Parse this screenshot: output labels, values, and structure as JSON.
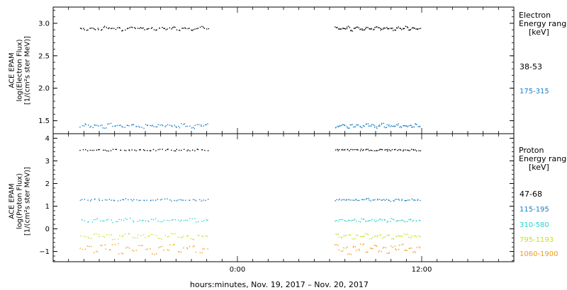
{
  "chart_data": [
    {
      "type": "scatter",
      "title": "",
      "ylabel": [
        "ACE EPAM",
        "log(Electron Flux)",
        "[1/(cm²s ster MeV)]"
      ],
      "ylim": [
        1.3,
        3.25
      ],
      "yticks": [
        1.5,
        2.0,
        2.5,
        3.0
      ],
      "yticklabels": [
        "1.5",
        "2.0",
        "2.5",
        "3.0"
      ],
      "legend_title": [
        "Electron",
        "Energy range",
        "[keV]"
      ],
      "legend_placement": "right",
      "x_segments_utc": [
        [
          "2017-11-19 13:42",
          "2017-11-19 22:06"
        ],
        [
          "2017-11-20 06:18",
          "2017-11-20 11:54"
        ]
      ],
      "series": [
        {
          "name": "38-53",
          "color": "#000000",
          "values": [
            2.93,
            2.9,
            2.94,
            2.92,
            2.91,
            2.95,
            2.93,
            2.92,
            2.94,
            2.9,
            2.93,
            2.95,
            2.92,
            2.94,
            2.91,
            2.93,
            2.9,
            2.94,
            2.92,
            2.93,
            2.95,
            2.91,
            2.94,
            2.92,
            2.9,
            2.93,
            2.95,
            2.92,
            2.94,
            2.91,
            2.93,
            2.92,
            2.95,
            2.9,
            2.93,
            2.94,
            2.92,
            2.91,
            2.94,
            2.93,
            2.92,
            2.95,
            2.93,
            2.91,
            2.94,
            2.92,
            2.93,
            2.9,
            2.94,
            2.92,
            2.93,
            2.95,
            2.91,
            2.94,
            2.93,
            2.92
          ]
        },
        {
          "name": "175-315",
          "color": "#1a7fc4",
          "values": [
            1.42,
            1.45,
            1.41,
            1.44,
            1.43,
            1.4,
            1.46,
            1.42,
            1.44,
            1.41,
            1.43,
            1.45,
            1.42,
            1.4,
            1.44,
            1.43,
            1.41,
            1.45,
            1.42,
            1.44,
            1.43,
            1.41,
            1.46,
            1.42,
            1.4,
            1.44,
            1.43,
            1.45,
            1.41,
            1.42,
            1.44,
            1.43,
            1.4,
            1.45,
            1.42,
            1.44,
            1.41,
            1.43,
            1.45,
            1.42,
            1.44,
            1.4,
            1.43,
            1.46,
            1.41,
            1.44,
            1.42,
            1.43,
            1.45,
            1.41,
            1.44,
            1.42,
            1.43,
            1.4,
            1.45,
            1.42
          ]
        }
      ]
    },
    {
      "type": "scatter",
      "title": "",
      "ylabel": [
        "ACE EPAM",
        "log(Proton Flux)",
        "[1/(cm²s ster MeV)]"
      ],
      "ylim": [
        -1.45,
        4.2
      ],
      "yticks": [
        -1,
        0,
        1,
        2,
        3,
        4
      ],
      "yticklabels": [
        "−1",
        "0",
        "1",
        "2",
        "3",
        "4"
      ],
      "legend_title": [
        "Proton",
        "Energy range",
        "[keV]"
      ],
      "legend_placement": "right",
      "xlabel": "hours:minutes, Nov. 19, 2017 – Nov. 20, 2017",
      "xlim": [
        "2017-11-19 12:00",
        "2017-11-20 18:00"
      ],
      "xticks": [
        "2017-11-20 00:00",
        "2017-11-20 12:00"
      ],
      "xticklabels": [
        "0:00",
        "12:00"
      ],
      "x_segments_utc": [
        [
          "2017-11-19 13:42",
          "2017-11-19 22:06"
        ],
        [
          "2017-11-20 06:18",
          "2017-11-20 11:54"
        ]
      ],
      "series": [
        {
          "name": "47-68",
          "color": "#000000",
          "values": [
            3.5,
            3.49,
            3.51,
            3.5,
            3.48,
            3.5,
            3.52,
            3.49,
            3.5,
            3.51,
            3.5,
            3.49,
            3.5,
            3.51,
            3.48,
            3.5,
            3.5,
            3.49,
            3.51,
            3.5,
            3.5,
            3.49,
            3.52,
            3.5,
            3.49,
            3.5,
            3.51,
            3.5,
            3.49,
            3.5,
            3.5,
            3.51,
            3.49,
            3.5,
            3.5,
            3.48,
            3.5,
            3.51,
            3.5,
            3.49
          ]
        },
        {
          "name": "115-195",
          "color": "#1a7fc4",
          "values": [
            1.3,
            1.28,
            1.32,
            1.29,
            1.31,
            1.27,
            1.3,
            1.33,
            1.29,
            1.3,
            1.28,
            1.31,
            1.3,
            1.32,
            1.27,
            1.29,
            1.31,
            1.3,
            1.28,
            1.3,
            1.29,
            1.32,
            1.3,
            1.28,
            1.31,
            1.29,
            1.3,
            1.33,
            1.28,
            1.3,
            1.31,
            1.29,
            1.3,
            1.27,
            1.32,
            1.3,
            1.29,
            1.31,
            1.28,
            1.3
          ]
        },
        {
          "name": "310-580",
          "color": "#2ad0c8",
          "values": [
            0.4,
            0.35,
            0.45,
            0.38,
            0.42,
            0.33,
            0.4,
            0.47,
            0.36,
            0.41,
            0.38,
            0.44,
            0.35,
            0.4,
            0.43,
            0.37,
            0.4,
            0.46,
            0.34,
            0.41,
            0.39,
            0.44,
            0.36,
            0.4,
            0.42,
            0.35,
            0.45,
            0.38,
            0.41,
            0.37,
            0.43,
            0.4,
            0.34,
            0.46,
            0.39,
            0.41,
            0.36,
            0.44,
            0.38,
            0.4
          ]
        },
        {
          "name": "795-1193",
          "color": "#c8e01e",
          "values": [
            -0.3,
            -0.38,
            -0.22,
            -0.34,
            -0.25,
            -0.42,
            -0.3,
            -0.2,
            -0.36,
            -0.27,
            -0.33,
            -0.24,
            -0.4,
            -0.29,
            -0.21,
            -0.35,
            -0.28,
            -0.44,
            -0.26,
            -0.32,
            -0.23,
            -0.37,
            -0.3,
            -0.25,
            -0.41,
            -0.28,
            -0.34,
            -0.22,
            -0.39,
            -0.3,
            -0.26,
            -0.36,
            -0.24,
            -0.43,
            -0.29,
            -0.31,
            -0.23,
            -0.38,
            -0.27,
            -0.3
          ]
        },
        {
          "name": "1060-1900",
          "color": "#f09a1c",
          "values": [
            -0.85,
            -0.75,
            -1.0,
            -0.7,
            -0.9,
            -0.65,
            -1.05,
            -0.8,
            -0.95,
            -0.72,
            -0.88,
            -1.1,
            -0.78,
            -0.92,
            -0.68,
            -0.98,
            -0.82,
            -0.74,
            -1.02,
            -0.86,
            -0.7,
            -0.94,
            -0.8,
            -1.08,
            -0.76,
            -0.9,
            -0.66,
            -0.99,
            -0.84,
            -0.73,
            -0.96,
            -0.81,
            -1.04,
            -0.77,
            -0.89,
            -0.69,
            -0.93,
            -0.83,
            -1.0,
            -0.79
          ]
        }
      ]
    }
  ]
}
